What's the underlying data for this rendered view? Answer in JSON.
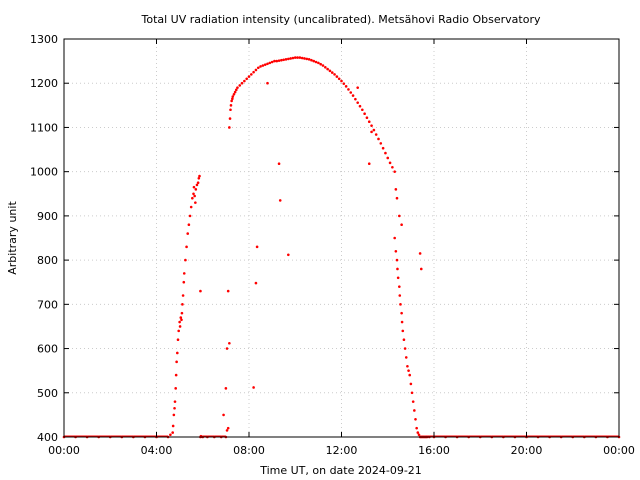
{
  "chart_data": {
    "type": "scatter",
    "title": "Total UV radiation intensity (uncalibrated). Metsähovi Radio Observatory",
    "xlabel": "Time UT, on date 2024-09-21",
    "ylabel": "Arbitrary unit",
    "x_unit": "hours",
    "xlim": [
      0,
      24
    ],
    "ylim": [
      400,
      1300
    ],
    "x_ticks": [
      0,
      4,
      8,
      12,
      16,
      20,
      24
    ],
    "x_tick_labels": [
      "00:00",
      "04:00",
      "08:00",
      "12:00",
      "16:00",
      "20:00",
      "00:00"
    ],
    "y_ticks": [
      400,
      500,
      600,
      700,
      800,
      900,
      1000,
      1100,
      1200,
      1300
    ],
    "y_tick_labels": [
      "400",
      "500",
      "600",
      "700",
      "800",
      "900",
      "1000",
      "1100",
      "1200",
      "1300"
    ],
    "grid": true,
    "marker_color": "#ff0000",
    "series": [
      {
        "x": [
          0.0,
          0.5,
          1.0,
          1.5,
          2.0,
          2.5,
          3.0,
          3.5,
          4.0,
          4.5,
          4.6,
          4.7,
          4.72,
          4.75,
          4.78,
          4.8,
          4.83,
          4.85,
          4.87,
          4.9,
          4.93,
          4.96,
          5.0,
          5.02,
          5.05,
          5.08,
          5.1,
          5.12,
          5.15,
          5.18,
          5.2,
          5.25,
          5.3,
          5.35,
          5.4,
          5.45,
          5.5,
          5.55,
          5.6,
          5.62,
          5.65,
          5.68,
          5.7,
          5.75,
          5.8,
          5.83,
          5.86,
          5.9,
          5.92,
          5.95,
          6.0,
          6.2,
          6.5,
          6.8,
          7.0,
          7.05,
          7.1,
          6.9,
          7.15,
          7.18,
          7.2,
          7.22,
          7.25,
          7.28,
          7.3,
          7.35,
          7.4,
          7.45,
          7.5,
          7.6,
          7.7,
          7.8,
          7.9,
          8.0,
          8.1,
          8.2,
          8.3,
          8.4,
          8.5,
          8.6,
          8.7,
          8.8,
          8.9,
          9.0,
          9.1,
          9.2,
          9.3,
          9.4,
          9.5,
          9.6,
          9.7,
          9.8,
          9.9,
          10.0,
          10.1,
          10.2,
          10.3,
          10.4,
          10.5,
          10.6,
          10.7,
          10.8,
          10.9,
          11.0,
          11.1,
          11.2,
          11.3,
          11.4,
          11.5,
          11.6,
          11.7,
          11.8,
          11.9,
          12.0,
          12.1,
          12.2,
          12.3,
          12.4,
          12.5,
          12.6,
          12.7,
          12.8,
          12.9,
          13.0,
          13.1,
          13.2,
          13.3,
          13.4,
          13.5,
          13.6,
          13.7,
          13.8,
          13.9,
          14.0,
          14.1,
          14.2,
          14.3,
          14.35,
          14.4,
          14.5,
          14.6,
          14.3,
          14.35,
          14.4,
          14.42,
          14.45,
          14.5,
          14.52,
          14.55,
          14.6,
          14.62,
          14.65,
          14.7,
          14.75,
          14.8,
          14.85,
          14.9,
          14.95,
          15.0,
          15.05,
          15.1,
          15.15,
          15.2,
          15.25,
          15.3,
          15.35,
          15.4,
          15.45,
          15.5,
          15.55,
          15.6,
          15.65,
          15.7,
          15.8,
          16.0,
          16.5,
          17.0,
          17.5,
          18.0,
          18.5,
          19.0,
          19.5,
          20.0,
          20.5,
          21.0,
          21.5,
          22.0,
          22.5,
          23.0,
          23.5,
          24.0,
          8.2,
          8.3,
          8.35,
          8.8,
          9.3,
          9.35,
          9.7,
          7.0,
          7.05,
          7.1,
          7.15,
          5.9,
          12.7,
          13.2,
          13.3,
          15.4,
          15.45
        ],
        "y": [
          400,
          400,
          400,
          400,
          400,
          400,
          400,
          400,
          400,
          400,
          405,
          410,
          425,
          450,
          465,
          480,
          510,
          540,
          570,
          590,
          620,
          640,
          660,
          650,
          670,
          665,
          680,
          700,
          720,
          750,
          770,
          800,
          830,
          860,
          880,
          900,
          920,
          940,
          950,
          965,
          945,
          930,
          960,
          970,
          975,
          985,
          990,
          400,
          402,
          401,
          400,
          400,
          400,
          400,
          400,
          415,
          420,
          450,
          1100,
          1120,
          1140,
          1150,
          1160,
          1165,
          1170,
          1175,
          1180,
          1185,
          1190,
          1195,
          1200,
          1205,
          1210,
          1215,
          1220,
          1225,
          1230,
          1235,
          1238,
          1240,
          1242,
          1244,
          1246,
          1248,
          1250,
          1250,
          1251,
          1252,
          1253,
          1254,
          1255,
          1256,
          1257,
          1258,
          1258,
          1258,
          1257,
          1256,
          1255,
          1254,
          1252,
          1250,
          1248,
          1246,
          1243,
          1240,
          1236,
          1232,
          1228,
          1224,
          1220,
          1215,
          1210,
          1205,
          1199,
          1193,
          1186,
          1179,
          1172,
          1164,
          1156,
          1148,
          1140,
          1131,
          1122,
          1113,
          1104,
          1094,
          1084,
          1074,
          1064,
          1053,
          1042,
          1031,
          1020,
          1010,
          1000,
          960,
          940,
          900,
          880,
          850,
          820,
          800,
          780,
          760,
          740,
          720,
          700,
          680,
          660,
          640,
          620,
          600,
          580,
          560,
          550,
          540,
          520,
          500,
          480,
          460,
          440,
          420,
          410,
          405,
          400,
          400,
          400,
          400,
          400,
          400,
          400,
          400,
          400,
          400,
          400,
          400,
          400,
          400,
          400,
          400,
          400,
          400,
          400,
          400,
          400,
          400,
          400,
          400,
          400,
          512,
          748,
          830,
          1200,
          1018,
          935,
          812,
          510,
          600,
          730,
          612,
          730,
          1190,
          1018,
          1090,
          815,
          780
        ]
      }
    ]
  }
}
